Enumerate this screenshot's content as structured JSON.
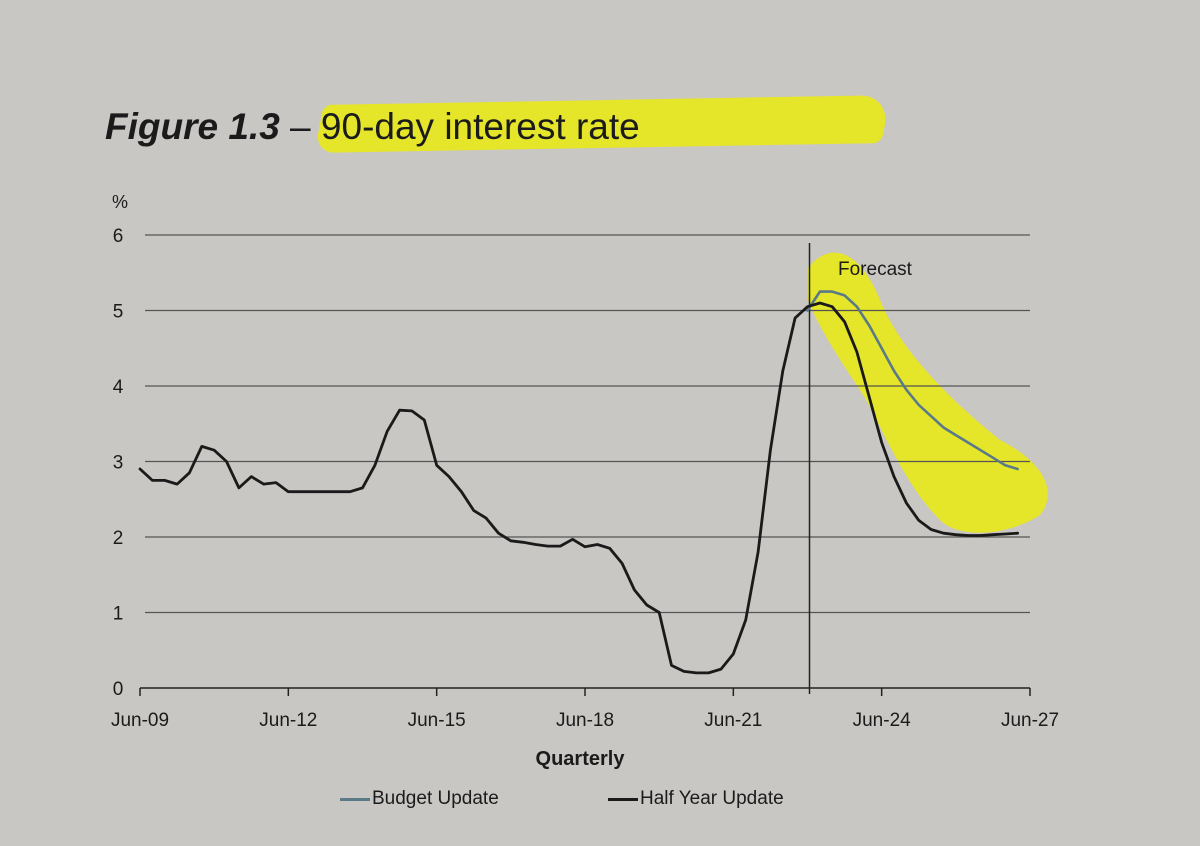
{
  "title_prefix": "Figure 1.3",
  "title_rest": " – 90-day interest rate",
  "colors": {
    "budget_update": "#5a7a88",
    "half_year_update": "#1a1a1a",
    "highlight": "#e8e81a",
    "grid": "#555555",
    "paper": "#c9c7c3"
  },
  "chart_data": {
    "type": "line",
    "title": "Figure 1.3 – 90-day interest rate",
    "xlabel": "Quarterly",
    "ylabel": "%",
    "ylim": [
      0,
      6
    ],
    "yticks": [
      "0",
      "1",
      "2",
      "3",
      "4",
      "5",
      "6"
    ],
    "x_tick_labels": [
      "Jun-09",
      "Jun-12",
      "Jun-15",
      "Jun-18",
      "Jun-21",
      "Jun-24",
      "Jun-27"
    ],
    "forecast_label": "Forecast",
    "forecast_start": "Dec-22",
    "grid": true,
    "legend_position": "bottom",
    "series": [
      {
        "name": "Budget Update",
        "color": "#5a7a88",
        "points": [
          [
            "Dec-22",
            5.0
          ],
          [
            "Mar-23",
            5.25
          ],
          [
            "Jun-23",
            5.25
          ],
          [
            "Sep-23",
            5.2
          ],
          [
            "Dec-23",
            5.05
          ],
          [
            "Mar-24",
            4.8
          ],
          [
            "Jun-24",
            4.5
          ],
          [
            "Sep-24",
            4.2
          ],
          [
            "Dec-24",
            3.95
          ],
          [
            "Mar-25",
            3.75
          ],
          [
            "Jun-25",
            3.6
          ],
          [
            "Sep-25",
            3.45
          ],
          [
            "Dec-25",
            3.35
          ],
          [
            "Mar-26",
            3.25
          ],
          [
            "Jun-26",
            3.15
          ],
          [
            "Sep-26",
            3.05
          ],
          [
            "Dec-26",
            2.95
          ],
          [
            "Mar-27",
            2.9
          ]
        ]
      },
      {
        "name": "Half Year Update",
        "color": "#1a1a1a",
        "points": [
          [
            "Jun-09",
            2.9
          ],
          [
            "Sep-09",
            2.75
          ],
          [
            "Dec-09",
            2.75
          ],
          [
            "Mar-10",
            2.7
          ],
          [
            "Jun-10",
            2.85
          ],
          [
            "Sep-10",
            3.2
          ],
          [
            "Dec-10",
            3.15
          ],
          [
            "Mar-11",
            3.0
          ],
          [
            "Jun-11",
            2.65
          ],
          [
            "Sep-11",
            2.8
          ],
          [
            "Dec-11",
            2.7
          ],
          [
            "Mar-12",
            2.72
          ],
          [
            "Jun-12",
            2.6
          ],
          [
            "Sep-12",
            2.6
          ],
          [
            "Dec-12",
            2.6
          ],
          [
            "Mar-13",
            2.6
          ],
          [
            "Jun-13",
            2.6
          ],
          [
            "Sep-13",
            2.6
          ],
          [
            "Dec-13",
            2.65
          ],
          [
            "Mar-14",
            2.95
          ],
          [
            "Jun-14",
            3.4
          ],
          [
            "Sep-14",
            3.68
          ],
          [
            "Dec-14",
            3.67
          ],
          [
            "Mar-15",
            3.55
          ],
          [
            "Jun-15",
            2.95
          ],
          [
            "Sep-15",
            2.8
          ],
          [
            "Dec-15",
            2.6
          ],
          [
            "Mar-16",
            2.35
          ],
          [
            "Jun-16",
            2.25
          ],
          [
            "Sep-16",
            2.05
          ],
          [
            "Dec-16",
            1.95
          ],
          [
            "Mar-17",
            1.93
          ],
          [
            "Jun-17",
            1.9
          ],
          [
            "Sep-17",
            1.88
          ],
          [
            "Dec-17",
            1.88
          ],
          [
            "Mar-18",
            1.97
          ],
          [
            "Jun-18",
            1.87
          ],
          [
            "Sep-18",
            1.9
          ],
          [
            "Dec-18",
            1.85
          ],
          [
            "Mar-19",
            1.65
          ],
          [
            "Jun-19",
            1.3
          ],
          [
            "Sep-19",
            1.1
          ],
          [
            "Dec-19",
            1.0
          ],
          [
            "Mar-20",
            0.3
          ],
          [
            "Jun-20",
            0.22
          ],
          [
            "Sep-20",
            0.2
          ],
          [
            "Dec-20",
            0.2
          ],
          [
            "Mar-21",
            0.25
          ],
          [
            "Jun-21",
            0.45
          ],
          [
            "Sep-21",
            0.9
          ],
          [
            "Dec-21",
            1.8
          ],
          [
            "Mar-22",
            3.15
          ],
          [
            "Jun-22",
            4.2
          ],
          [
            "Sep-22",
            4.9
          ],
          [
            "Dec-22",
            5.05
          ],
          [
            "Mar-23",
            5.1
          ],
          [
            "Jun-23",
            5.05
          ],
          [
            "Sep-23",
            4.85
          ],
          [
            "Dec-23",
            4.45
          ],
          [
            "Mar-24",
            3.85
          ],
          [
            "Jun-24",
            3.25
          ],
          [
            "Sep-24",
            2.8
          ],
          [
            "Dec-24",
            2.45
          ],
          [
            "Mar-25",
            2.22
          ],
          [
            "Jun-25",
            2.1
          ],
          [
            "Sep-25",
            2.05
          ],
          [
            "Dec-25",
            2.03
          ],
          [
            "Mar-26",
            2.02
          ],
          [
            "Jun-26",
            2.02
          ],
          [
            "Sep-26",
            2.03
          ],
          [
            "Dec-26",
            2.04
          ],
          [
            "Mar-27",
            2.05
          ]
        ]
      }
    ]
  }
}
